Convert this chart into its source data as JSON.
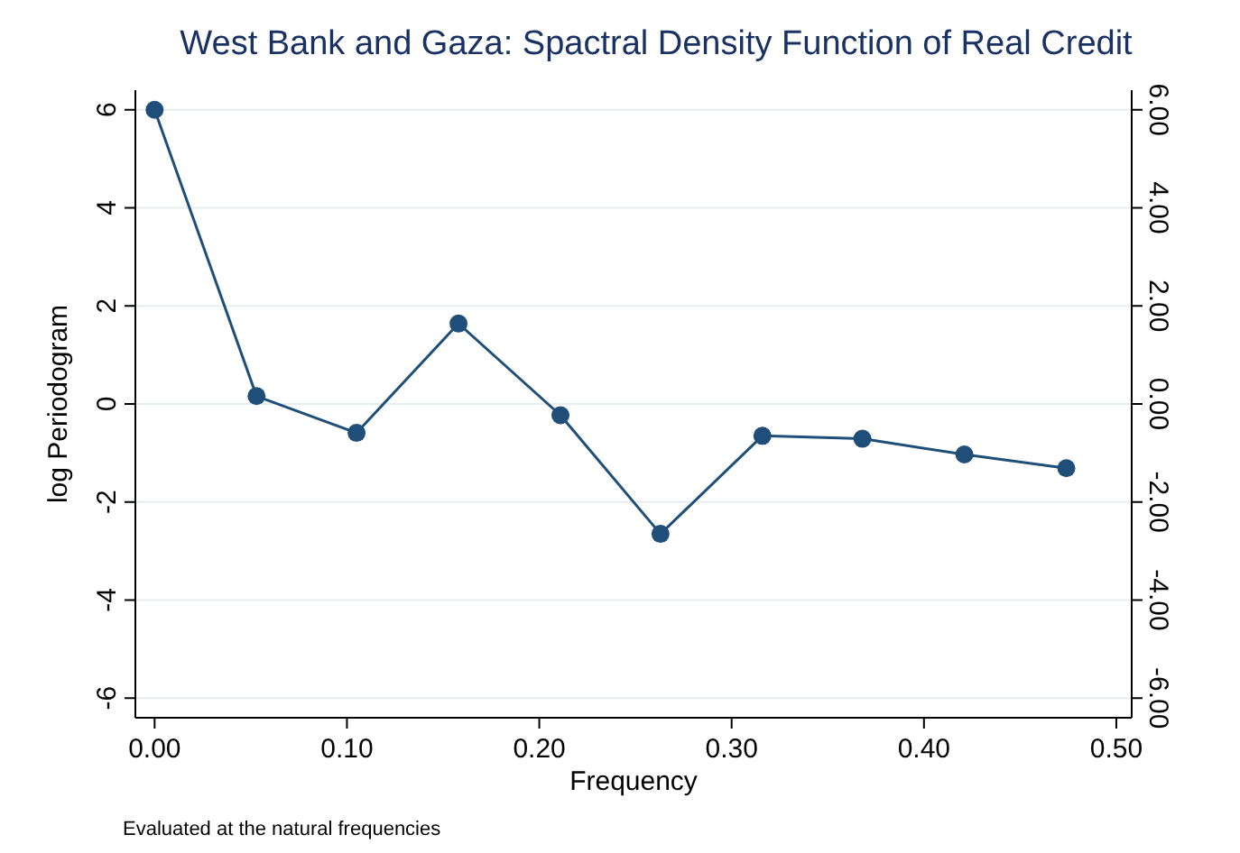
{
  "chart_data": {
    "type": "line",
    "title": "West Bank and Gaza: Spactral Density Function of Real Credit",
    "xlabel": "Frequency",
    "ylabel": "log Periodogram",
    "annotations": [
      "Evaluated at the natural frequencies"
    ],
    "x": [
      0,
      0.053,
      0.105,
      0.158,
      0.211,
      0.263,
      0.316,
      0.368,
      0.421,
      0.474
    ],
    "series": [
      {
        "color": "#1f4e79",
        "values": [
          6,
          0.16,
          -0.59,
          1.64,
          -0.23,
          -2.65,
          -0.65,
          -0.71,
          -1.03,
          -1.31
        ]
      }
    ],
    "xlim": [
      -0.01,
      0.508
    ],
    "xticks": [
      {
        "value": 0,
        "label": "0.00"
      },
      {
        "value": 0.1,
        "label": "0.10"
      },
      {
        "value": 0.2,
        "label": "0.20"
      },
      {
        "value": 0.3,
        "label": "0.30"
      },
      {
        "value": 0.4,
        "label": "0.40"
      },
      {
        "value": 0.5,
        "label": "0.50"
      }
    ],
    "ylim": [
      -6.4,
      6.4
    ],
    "yticks": [
      -6,
      -4,
      -2,
      0,
      2,
      4,
      6
    ],
    "y2lim": [
      -6.4,
      6.4
    ],
    "y2ticks": [
      {
        "value": -6,
        "label": "-6.00"
      },
      {
        "value": -4,
        "label": "-4.00"
      },
      {
        "value": -2,
        "label": "-2.00"
      },
      {
        "value": 0,
        "label": "0.00"
      },
      {
        "value": 2,
        "label": "2.00"
      },
      {
        "value": 4,
        "label": "4.00"
      },
      {
        "value": 6,
        "label": "6.00"
      }
    ],
    "grid": "y",
    "marker": "circle",
    "line_style": "solid"
  }
}
